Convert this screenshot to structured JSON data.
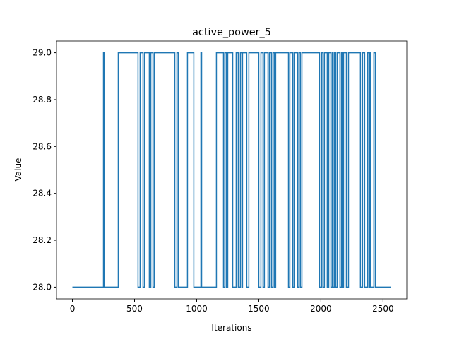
{
  "chart_data": {
    "type": "line",
    "title": "active_power_5",
    "xlabel": "Iterations",
    "ylabel": "Value",
    "x": [
      0,
      250,
      250,
      256,
      256,
      369,
      369,
      528,
      528,
      545,
      545,
      568,
      568,
      580,
      580,
      619,
      619,
      631,
      631,
      648,
      648,
      659,
      659,
      824,
      824,
      841,
      841,
      852,
      852,
      926,
      926,
      977,
      977,
      1034,
      1034,
      1040,
      1040,
      1159,
      1159,
      1216,
      1216,
      1227,
      1227,
      1239,
      1239,
      1250,
      1250,
      1290,
      1290,
      1318,
      1318,
      1335,
      1335,
      1352,
      1352,
      1364,
      1364,
      1369,
      1369,
      1403,
      1403,
      1420,
      1420,
      1500,
      1500,
      1517,
      1517,
      1534,
      1534,
      1545,
      1545,
      1574,
      1574,
      1585,
      1585,
      1602,
      1602,
      1614,
      1614,
      1625,
      1625,
      1636,
      1636,
      1739,
      1739,
      1750,
      1750,
      1773,
      1773,
      1784,
      1784,
      1813,
      1813,
      1824,
      1824,
      1835,
      1835,
      1847,
      1847,
      1989,
      1989,
      2006,
      2006,
      2017,
      2017,
      2028,
      2028,
      2051,
      2051,
      2063,
      2063,
      2080,
      2080,
      2091,
      2091,
      2097,
      2097,
      2108,
      2108,
      2119,
      2119,
      2131,
      2131,
      2153,
      2153,
      2165,
      2165,
      2170,
      2170,
      2182,
      2182,
      2205,
      2205,
      2222,
      2222,
      2318,
      2318,
      2335,
      2335,
      2352,
      2352,
      2375,
      2375,
      2386,
      2386,
      2392,
      2392,
      2398,
      2398,
      2426,
      2426,
      2438,
      2438,
      2563
    ],
    "values": [
      28,
      28,
      29,
      29,
      28,
      28,
      29,
      29,
      28,
      28,
      29,
      29,
      28,
      28,
      29,
      29,
      28,
      28,
      29,
      29,
      28,
      28,
      29,
      29,
      28,
      28,
      29,
      29,
      28,
      28,
      29,
      29,
      28,
      28,
      29,
      29,
      28,
      28,
      29,
      29,
      28,
      28,
      29,
      29,
      28,
      28,
      29,
      29,
      28,
      28,
      29,
      29,
      28,
      28,
      29,
      29,
      28,
      28,
      29,
      29,
      28,
      28,
      29,
      29,
      28,
      28,
      29,
      29,
      28,
      28,
      29,
      29,
      28,
      28,
      29,
      29,
      28,
      28,
      29,
      29,
      28,
      28,
      29,
      29,
      28,
      28,
      29,
      29,
      28,
      28,
      29,
      29,
      28,
      28,
      29,
      29,
      28,
      28,
      29,
      29,
      28,
      28,
      29,
      29,
      28,
      28,
      29,
      29,
      28,
      28,
      29,
      29,
      28,
      28,
      29,
      29,
      28,
      28,
      29,
      29,
      28,
      28,
      29,
      29,
      28,
      28,
      29,
      29,
      28,
      28,
      29,
      29,
      28,
      28,
      29,
      29,
      28,
      28,
      29,
      29,
      28,
      28,
      29,
      29,
      28,
      28,
      29,
      29,
      28,
      28,
      29,
      29,
      28,
      28
    ],
    "color": "#1f77b4",
    "xlim": [
      -128,
      2691
    ],
    "xticks": [
      0,
      500,
      1000,
      1500,
      2000,
      2500
    ],
    "ylim": [
      27.95,
      29.05
    ],
    "yticks": [
      {
        "value": 28,
        "label": "28.0"
      },
      28.2,
      28.4,
      28.6,
      28.8,
      {
        "value": 29,
        "label": "29.0"
      }
    ]
  }
}
